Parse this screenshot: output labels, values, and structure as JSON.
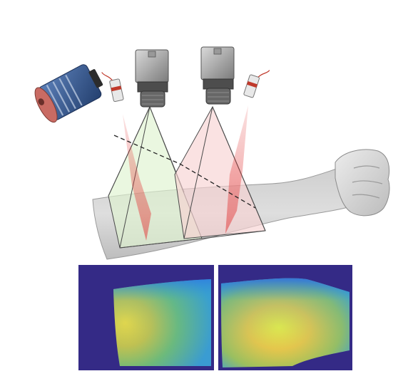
{
  "figure": {
    "illustration": {
      "devices": [
        {
          "name": "projector",
          "icon": "projector-icon"
        },
        {
          "name": "laser-left",
          "icon": "laser-icon"
        },
        {
          "name": "camera-left",
          "icon": "camera-icon"
        },
        {
          "name": "camera-right",
          "icon": "camera-icon"
        },
        {
          "name": "laser-right",
          "icon": "laser-icon"
        }
      ],
      "subject": "forearm",
      "colors": {
        "left_view_tint": "#dff3cf",
        "right_view_tint": "#f7d2d2",
        "laser_line": "#e23b3b",
        "projector_cap": "#c96b63",
        "projector_body": "#3d5f95"
      }
    },
    "depth_maps": {
      "colormap": "parula",
      "background": "#342a86",
      "panels": [
        {
          "name": "left-camera-depth-map"
        },
        {
          "name": "right-camera-depth-map"
        }
      ]
    }
  }
}
